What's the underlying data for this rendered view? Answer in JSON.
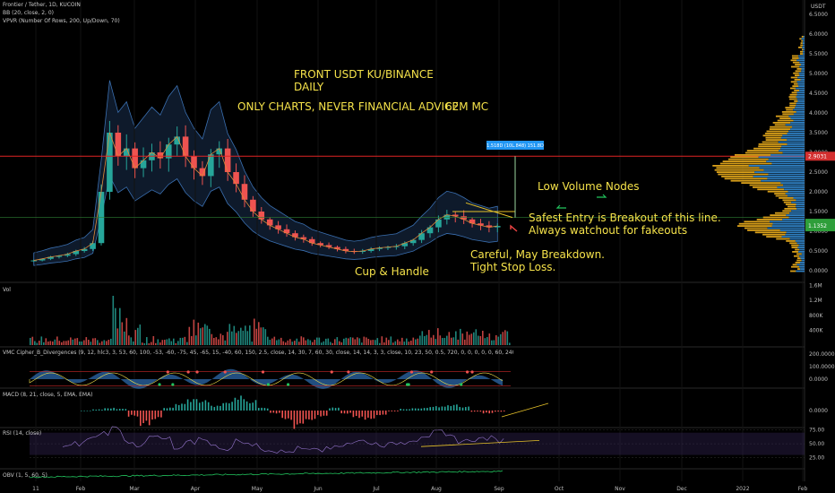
{
  "header": {
    "symbol": "Frontier / Tether, 1D, KUCOIN",
    "ind_bb": "BB (20, close, 2, 0)",
    "ind_vpvr": "VPVR (Number Of Rows, 200, Up/Down, 70)",
    "currency": "USDT"
  },
  "annotations": {
    "title1": "FRONT USDT KU/BINANCE",
    "title2": "DAILY",
    "disclaimer": "ONLY CHARTS, NEVER FINANCIAL ADVICE.",
    "mc": "62M MC",
    "lvn": "Low Volume Nodes",
    "entry1": "Safest Entry is Breakout of this line.",
    "entry2": "Always watchout for fakeouts",
    "careful1": "Careful, May Breakdown.",
    "careful2": "Tight Stop Loss.",
    "cup": "Cup & Handle",
    "measure": "1.518D (10L.848) 151.8D"
  },
  "panes": {
    "vol": "Vol",
    "vmc": "VMC Cipher_B_Divergences (9, 12, hlc3, 3, 53, 60, 100, -53, -60, -75, 45, -65, 15, -40, 60, 150, 2.5, close, 14, 30, 7, 60, 30, close, 14, 14, 3, 3, close, 10, 23, 50, 0.5, 720, 0, 0, 0, 0, 0, 60, 240, 0, 0, 240)",
    "macd": "MACD (8, 21, close, 5, EMA, EMA)",
    "rsi": "RSI (14, close)",
    "obv": "OBV (1, 5, 60, 5)"
  },
  "colors": {
    "background": "#000000",
    "bull": "#26a69a",
    "bear": "#ef5350",
    "annotation": "#f5e24a",
    "bb_fill": "#1e3a5f",
    "vpvr_up": "#2f7fc1",
    "vpvr_down": "#d9a01a",
    "hline_red": "#e02424",
    "current_price_badge": "#2e9e3a",
    "red_price_badge": "#d32f2f"
  },
  "chart_data": {
    "type": "candlestick",
    "x_axis_labels": [
      "11",
      "Feb",
      "Mar",
      "Apr",
      "May",
      "Jun",
      "Jul",
      "Aug",
      "Sep",
      "Oct",
      "Nov",
      "Dec",
      "2022",
      "Feb"
    ],
    "price_ticks": [
      "6.5000",
      "6.0000",
      "5.5000",
      "5.0000",
      "4.5000",
      "4.0000",
      "3.5000",
      "3.0000",
      "2.5000",
      "2.0000",
      "1.5000",
      "1.0000",
      "0.5000",
      "0.0000"
    ],
    "current_price": "1.1352",
    "red_level": "2.9031",
    "volume_ticks": [
      "1.6M",
      "1.2M",
      "800K",
      "400K"
    ],
    "vmc_ticks": [
      "200.0000",
      "100.0000",
      "0.0000"
    ],
    "macd_ticks": [
      "0.0000"
    ],
    "rsi_ticks": [
      "75.00",
      "50.00",
      "25.00"
    ],
    "macd_series": [
      0.0,
      0.02,
      0.05,
      0.03,
      -0.1,
      -0.25,
      -0.15,
      0.05,
      0.12,
      0.2,
      0.18,
      0.08,
      0.15,
      0.25,
      0.18,
      0.05,
      -0.05,
      -0.18,
      -0.3,
      -0.2,
      -0.1,
      0.05,
      -0.05,
      -0.12,
      -0.15,
      -0.08,
      -0.02,
      0.03,
      0.04,
      0.06,
      0.08,
      0.1,
      0.07,
      -0.02,
      -0.05,
      -0.02
    ],
    "close_series": [
      0.26,
      0.3,
      0.35,
      0.38,
      0.42,
      0.5,
      0.55,
      0.7,
      2.0,
      3.5,
      2.9,
      3.1,
      2.6,
      2.8,
      3.0,
      2.85,
      3.2,
      3.4,
      2.9,
      2.6,
      2.4,
      2.95,
      3.1,
      2.5,
      2.2,
      1.8,
      1.5,
      1.3,
      1.15,
      1.05,
      0.95,
      0.85,
      0.8,
      0.7,
      0.65,
      0.6,
      0.55,
      0.5,
      0.48,
      0.5,
      0.55,
      0.58,
      0.6,
      0.62,
      0.7,
      0.78,
      0.95,
      1.1,
      1.3,
      1.42,
      1.38,
      1.3,
      1.2,
      1.15,
      1.1,
      1.135
    ],
    "rsi_series": [
      45,
      50,
      60,
      70,
      78,
      55,
      48,
      62,
      58,
      40,
      52,
      60,
      45,
      42,
      55,
      48,
      40,
      35,
      38,
      42,
      45,
      40,
      48,
      52,
      55,
      50,
      48,
      52,
      58,
      65,
      70,
      62,
      55,
      58,
      60,
      56
    ]
  }
}
